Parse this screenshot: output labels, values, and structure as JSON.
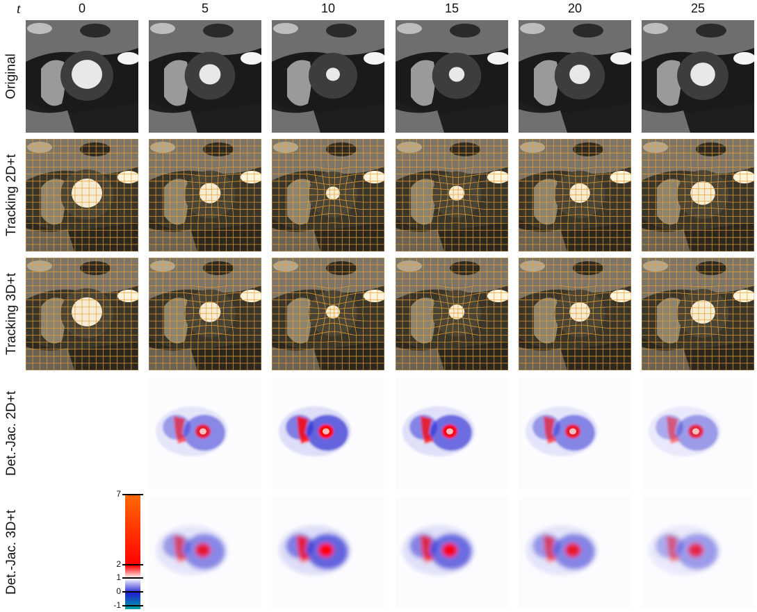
{
  "time_symbol": "t",
  "time_points": [
    "0",
    "5",
    "10",
    "15",
    "20",
    "25"
  ],
  "rows": [
    {
      "label": "Original",
      "kind": "mri",
      "grid": "none"
    },
    {
      "label": "Tracking 2D+t",
      "kind": "mri",
      "grid": "2d"
    },
    {
      "label": "Tracking 3D+t",
      "kind": "mri",
      "grid": "3d"
    },
    {
      "label": "Det.-Jac. 2D+t",
      "kind": "jac",
      "grid": "2d"
    },
    {
      "label": "Det.-Jac. 3D+t",
      "kind": "jac",
      "grid": "3d"
    }
  ],
  "colorbar": {
    "ticks": [
      "7",
      "2",
      "1",
      "0",
      "-1"
    ],
    "tick_values": [
      7,
      2,
      1,
      0,
      -1
    ],
    "colors": {
      "min": "#00a5a5",
      "zero": "#2020d0",
      "one": "#ffffff",
      "two": "#ff0000",
      "max": "#ff6a00"
    }
  },
  "styles": {
    "grid_color": "#e8a030",
    "frame_color": "#000000"
  }
}
